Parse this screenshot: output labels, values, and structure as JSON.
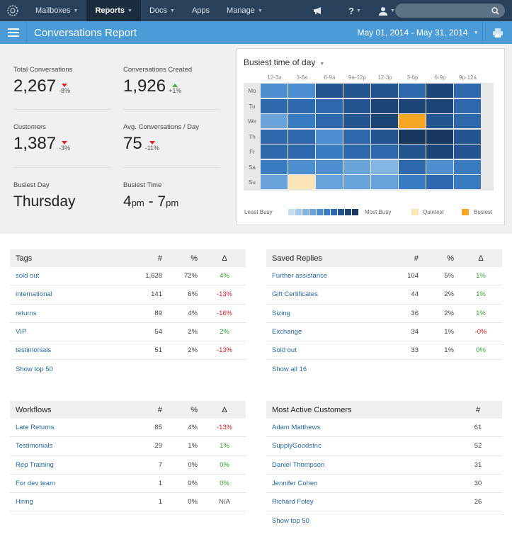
{
  "nav": {
    "items": [
      {
        "label": "Mailboxes",
        "caret": true
      },
      {
        "label": "Reports",
        "caret": true,
        "active": true
      },
      {
        "label": "Docs",
        "caret": true
      },
      {
        "label": "Apps",
        "caret": false
      },
      {
        "label": "Manage",
        "caret": true
      }
    ],
    "icons": [
      "megaphone-icon",
      "help-icon",
      "user-icon",
      "search-icon"
    ],
    "help_symbol": "?"
  },
  "header": {
    "title": "Conversations Report",
    "date_range": "May 01, 2014 - May 31, 2014"
  },
  "stats": {
    "total_conversations": {
      "label": "Total Conversations",
      "value": "2,267",
      "change": "-8%",
      "dir": "down"
    },
    "conversations_created": {
      "label": "Conversations Created",
      "value": "1,926",
      "change": "+1%",
      "dir": "up"
    },
    "customers": {
      "label": "Customers",
      "value": "1,387",
      "change": "-3%",
      "dir": "down"
    },
    "avg_per_day": {
      "label": "Avg. Conversations / Day",
      "value": "75",
      "change": "-11%",
      "dir": "down"
    },
    "busiest_day": {
      "label": "Busiest Day",
      "value": "Thursday"
    },
    "busiest_time": {
      "label": "Busiest Time",
      "from_num": "4",
      "from_ampm": "pm",
      "sep": " - ",
      "to_num": "7",
      "to_ampm": "pm"
    }
  },
  "heatmap": {
    "title": "Busiest time of day",
    "columns": [
      "12-3a",
      "3-6a",
      "6-9a",
      "9a-12p",
      "12-3p",
      "3-6p",
      "6-9p",
      "9p-12a"
    ],
    "rows": [
      "Mo",
      "Tu",
      "We",
      "Th",
      "Fr",
      "Sa",
      "Su"
    ],
    "levels": [
      [
        4,
        4,
        7,
        7,
        7,
        6,
        8,
        6
      ],
      [
        6,
        6,
        6,
        7,
        8,
        8,
        8,
        6
      ],
      [
        3,
        5,
        6,
        7,
        8,
        "busiest",
        7,
        6
      ],
      [
        6,
        6,
        4,
        6,
        7,
        9,
        9,
        7
      ],
      [
        6,
        6,
        5,
        6,
        6,
        7,
        8,
        7
      ],
      [
        5,
        4,
        4,
        3,
        2,
        6,
        4,
        5
      ],
      [
        3,
        "quietest",
        3,
        3,
        3,
        5,
        6,
        5
      ]
    ],
    "legend": {
      "least": "Least Busy",
      "most": "Most Busy",
      "quietest": "Quietest",
      "busiest": "Busiest"
    },
    "colors": {
      "scale": [
        "#c6dcf1",
        "#a7c9ea",
        "#85b5e2",
        "#6aa3da",
        "#4e8fcf",
        "#3a7cc2",
        "#2d68ac",
        "#245590",
        "#1c4576",
        "#16375e"
      ],
      "quietest": "#fce6b8",
      "busiest": "#f6a623"
    }
  },
  "tags": {
    "headers": [
      "Tags",
      "#",
      "%",
      "Δ"
    ],
    "rows": [
      {
        "name": "sold out",
        "count": "1,628",
        "pct": "72%",
        "delta": "4%",
        "trend": "pos"
      },
      {
        "name": "international",
        "count": "141",
        "pct": "6%",
        "delta": "-13%",
        "trend": "neg"
      },
      {
        "name": "returns",
        "count": "89",
        "pct": "4%",
        "delta": "-16%",
        "trend": "neg"
      },
      {
        "name": "VIP",
        "count": "54",
        "pct": "2%",
        "delta": "2%",
        "trend": "pos"
      },
      {
        "name": "testimonials",
        "count": "51",
        "pct": "2%",
        "delta": "-13%",
        "trend": "neg"
      }
    ],
    "more": "Show top 50"
  },
  "saved_replies": {
    "headers": [
      "Saved Replies",
      "#",
      "%",
      "Δ"
    ],
    "rows": [
      {
        "name": "Further assistance",
        "count": "104",
        "pct": "5%",
        "delta": "1%",
        "trend": "pos"
      },
      {
        "name": "Gift Certificates",
        "count": "44",
        "pct": "2%",
        "delta": "1%",
        "trend": "pos"
      },
      {
        "name": "Sizing",
        "count": "36",
        "pct": "2%",
        "delta": "1%",
        "trend": "pos"
      },
      {
        "name": "Exchange",
        "count": "34",
        "pct": "1%",
        "delta": "-0%",
        "trend": "neg"
      },
      {
        "name": "Sold out",
        "count": "33",
        "pct": "1%",
        "delta": "0%",
        "trend": "pos"
      }
    ],
    "more": "Show all 16"
  },
  "workflows": {
    "headers": [
      "Workflows",
      "#",
      "%",
      "Δ"
    ],
    "rows": [
      {
        "name": "Late Returns",
        "count": "85",
        "pct": "4%",
        "delta": "-13%",
        "trend": "neg"
      },
      {
        "name": "Testimonials",
        "count": "29",
        "pct": "1%",
        "delta": "1%",
        "trend": "pos"
      },
      {
        "name": "Rep Training",
        "count": "7",
        "pct": "0%",
        "delta": "0%",
        "trend": "pos"
      },
      {
        "name": "For dev team",
        "count": "1",
        "pct": "0%",
        "delta": "0%",
        "trend": "pos"
      },
      {
        "name": "Hiring",
        "count": "1",
        "pct": "0%",
        "delta": "N/A",
        "trend": "na"
      }
    ]
  },
  "customers_active": {
    "headers": [
      "Most Active Customers",
      "#"
    ],
    "rows": [
      {
        "name": "Adam Matthews",
        "count": "61"
      },
      {
        "name": "SupplyGoodsInc",
        "count": "52"
      },
      {
        "name": "Daniel Thompson",
        "count": "31"
      },
      {
        "name": "Jennifer Cohen",
        "count": "30"
      },
      {
        "name": "Richard Foley",
        "count": "26"
      }
    ],
    "more": "Show top 50"
  }
}
